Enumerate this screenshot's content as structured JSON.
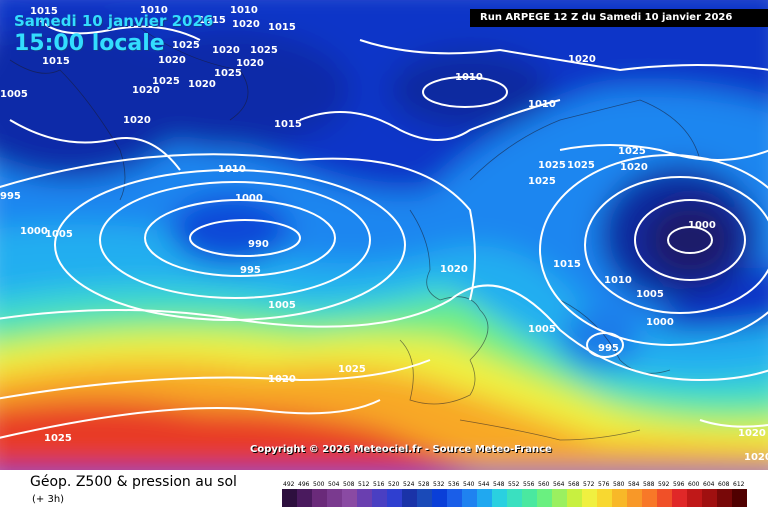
{
  "header": {
    "date_text": "Samedi 10 janvier 2026",
    "time_text": "15:00 locale",
    "run_text": "Run ARPEGE 12 Z du Samedi 10 janvier 2026"
  },
  "copyright": "Copyright © 2026 Meteociel.fr - Source Meteo-France",
  "legend": {
    "title": "Géop. Z500 & pression au sol",
    "subtitle": "(+ 3h)",
    "scale_values": [
      492,
      496,
      500,
      504,
      508,
      512,
      516,
      520,
      524,
      528,
      532,
      536,
      540,
      544,
      548,
      552,
      556,
      560,
      564,
      568,
      572,
      576,
      580,
      584,
      588,
      592,
      596,
      600,
      604,
      608,
      612
    ],
    "scale_colors": [
      "#2d0f3e",
      "#4a1a5e",
      "#6a2a7a",
      "#7a3a8f",
      "#8a4aa3",
      "#6a3fb0",
      "#4a3fc2",
      "#2f3fd0",
      "#1a33a8",
      "#1a4ab8",
      "#0a3fd8",
      "#1a5ee8",
      "#1f82f0",
      "#20a8f0",
      "#2ad0e0",
      "#3ae0c0",
      "#4ae8a0",
      "#6af080",
      "#9af060",
      "#c8f040",
      "#f0f040",
      "#f8d830",
      "#f8b828",
      "#f89828",
      "#f87828",
      "#f05028",
      "#e02828",
      "#c01818",
      "#a01010",
      "#780808",
      "#500000"
    ]
  },
  "isobar_labels": [
    {
      "text": "1015"
    },
    {
      "text": "1010"
    },
    {
      "text": "1015"
    },
    {
      "text": "1010"
    },
    {
      "text": "1015"
    },
    {
      "text": "1020"
    },
    {
      "text": "1015"
    },
    {
      "text": "1025"
    },
    {
      "text": "1020"
    },
    {
      "text": "1025"
    },
    {
      "text": "1005"
    },
    {
      "text": "1020"
    },
    {
      "text": "1025"
    },
    {
      "text": "1020"
    },
    {
      "text": "1025"
    },
    {
      "text": "1020"
    },
    {
      "text": "1020"
    },
    {
      "text": "1020"
    },
    {
      "text": "1010"
    },
    {
      "text": "1010"
    },
    {
      "text": "1015"
    },
    {
      "text": "1010"
    },
    {
      "text": "1000"
    },
    {
      "text": "990"
    },
    {
      "text": "995"
    },
    {
      "text": "1005"
    },
    {
      "text": "1020"
    },
    {
      "text": "1025"
    },
    {
      "text": "1025"
    },
    {
      "text": "995"
    },
    {
      "text": "1000"
    },
    {
      "text": "1005"
    },
    {
      "text": "1020"
    },
    {
      "text": "1025"
    },
    {
      "text": "1025"
    },
    {
      "text": "1025"
    },
    {
      "text": "1025"
    },
    {
      "text": "1020"
    },
    {
      "text": "1000"
    },
    {
      "text": "1015"
    },
    {
      "text": "1010"
    },
    {
      "text": "1005"
    },
    {
      "text": "1005"
    },
    {
      "text": "1000"
    },
    {
      "text": "995"
    },
    {
      "text": "1020"
    },
    {
      "text": "1020"
    },
    {
      "text": "1020"
    }
  ]
}
